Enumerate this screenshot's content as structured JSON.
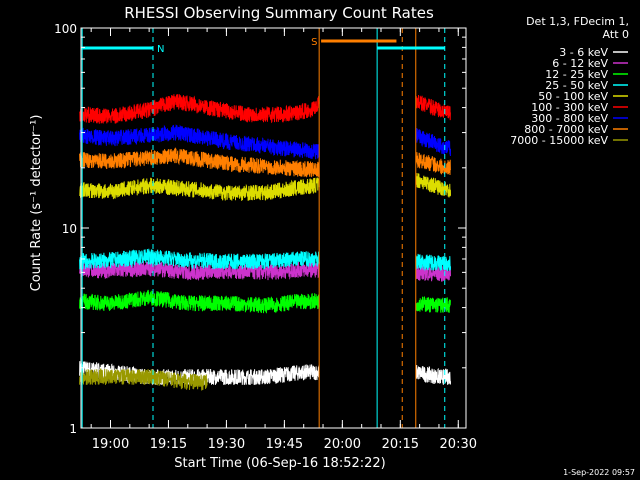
{
  "header": {
    "title": "RHESSI Observing Summary Count Rates",
    "info_line1": "Det 1,3, FDecim 1,",
    "info_line2": "Att 0",
    "footer_date": "1-Sep-2022 09:57"
  },
  "chart_data": {
    "type": "line",
    "title": "RHESSI Observing Summary Count Rates",
    "xlabel": "Start Time (06-Sep-16 18:52:22)",
    "ylabel": "Count Rate (s⁻¹ detector⁻¹)",
    "y_scale": "log",
    "ylim": [
      1,
      100
    ],
    "x_start": "18:52:22",
    "x_end": "20:32:00",
    "x_ticks": [
      "19:00",
      "19:15",
      "19:30",
      "19:45",
      "20:00",
      "20:15",
      "20:30"
    ],
    "y_ticks": [
      "1",
      "10",
      "100"
    ],
    "grid": false,
    "legend_position": "top-right",
    "data_gaps": [
      [
        "19:54:00",
        "20:19:00"
      ]
    ],
    "series": [
      {
        "name": "3 - 6 keV",
        "color": "#ffffff",
        "points": [
          [
            "18:52",
            "2"
          ],
          [
            "19:00",
            "1.9"
          ],
          [
            "19:10",
            "1.8"
          ],
          [
            "19:20",
            "1.8"
          ],
          [
            "19:30",
            "1.8"
          ],
          [
            "19:40",
            "1.8"
          ],
          [
            "19:50",
            "1.9"
          ],
          [
            "19:54",
            "1.9"
          ],
          [
            "20:19",
            "1.9"
          ],
          [
            "20:25",
            "1.8"
          ],
          [
            "20:28",
            "1.8"
          ]
        ]
      },
      {
        "name": "6 - 12 keV",
        "color": "#cc33cc",
        "points": [
          [
            "18:52",
            "6.2"
          ],
          [
            "19:00",
            "6.1"
          ],
          [
            "19:10",
            "6.3"
          ],
          [
            "19:20",
            "6.0"
          ],
          [
            "19:30",
            "6.1"
          ],
          [
            "19:40",
            "6.0"
          ],
          [
            "19:50",
            "6.2"
          ],
          [
            "19:54",
            "6.2"
          ],
          [
            "20:19",
            "6.0"
          ],
          [
            "20:25",
            "5.9"
          ],
          [
            "20:28",
            "5.9"
          ]
        ]
      },
      {
        "name": "12 - 25 keV",
        "color": "#00ff00",
        "points": [
          [
            "18:52",
            "4.3"
          ],
          [
            "19:00",
            "4.2"
          ],
          [
            "19:10",
            "4.5"
          ],
          [
            "19:20",
            "4.2"
          ],
          [
            "19:30",
            "4.2"
          ],
          [
            "19:40",
            "4.1"
          ],
          [
            "19:50",
            "4.3"
          ],
          [
            "19:54",
            "4.3"
          ],
          [
            "20:19",
            "4.2"
          ],
          [
            "20:25",
            "4.1"
          ],
          [
            "20:28",
            "4.1"
          ]
        ]
      },
      {
        "name": "25 - 50 keV",
        "color": "#00ffff",
        "points": [
          [
            "18:52",
            "6.8"
          ],
          [
            "19:00",
            "6.9"
          ],
          [
            "19:10",
            "7.2"
          ],
          [
            "19:20",
            "6.9"
          ],
          [
            "19:30",
            "6.8"
          ],
          [
            "19:40",
            "6.8"
          ],
          [
            "19:50",
            "7.0"
          ],
          [
            "19:54",
            "7.0"
          ],
          [
            "20:19",
            "6.8"
          ],
          [
            "20:25",
            "6.7"
          ],
          [
            "20:28",
            "6.6"
          ]
        ]
      },
      {
        "name": "50 - 100 keV",
        "color": "#dddd00",
        "points": [
          [
            "18:52",
            "15.5"
          ],
          [
            "19:00",
            "15.2"
          ],
          [
            "19:10",
            "16.3"
          ],
          [
            "19:20",
            "15.7"
          ],
          [
            "19:30",
            "15.0"
          ],
          [
            "19:40",
            "15.0"
          ],
          [
            "19:50",
            "16.0"
          ],
          [
            "19:54",
            "16.5"
          ],
          [
            "20:19",
            "17.5"
          ],
          [
            "20:25",
            "16.0"
          ],
          [
            "20:28",
            "15.5"
          ]
        ]
      },
      {
        "name": "100 - 300 keV",
        "color": "#ff0000",
        "points": [
          [
            "18:52",
            "37"
          ],
          [
            "19:00",
            "36"
          ],
          [
            "19:10",
            "39"
          ],
          [
            "19:17",
            "43"
          ],
          [
            "19:25",
            "40"
          ],
          [
            "19:35",
            "37"
          ],
          [
            "19:45",
            "37"
          ],
          [
            "19:52",
            "39"
          ],
          [
            "19:54",
            "42"
          ],
          [
            "20:19",
            "43"
          ],
          [
            "20:25",
            "39"
          ],
          [
            "20:28",
            "37"
          ]
        ]
      },
      {
        "name": "300 - 800 keV",
        "color": "#0000ff",
        "points": [
          [
            "18:52",
            "29"
          ],
          [
            "19:00",
            "28"
          ],
          [
            "19:10",
            "29"
          ],
          [
            "19:17",
            "30"
          ],
          [
            "19:30",
            "27"
          ],
          [
            "19:45",
            "25"
          ],
          [
            "19:54",
            "24"
          ],
          [
            "20:19",
            "29"
          ],
          [
            "20:25",
            "26"
          ],
          [
            "20:28",
            "25"
          ]
        ]
      },
      {
        "name": "800 - 7000 keV",
        "color": "#ff7f00",
        "points": [
          [
            "18:52",
            "22"
          ],
          [
            "19:00",
            "21.5"
          ],
          [
            "19:10",
            "22.5"
          ],
          [
            "19:17",
            "23"
          ],
          [
            "19:30",
            "21"
          ],
          [
            "19:45",
            "20"
          ],
          [
            "19:54",
            "19.5"
          ],
          [
            "20:19",
            "22"
          ],
          [
            "20:25",
            "20.5"
          ],
          [
            "20:28",
            "20"
          ]
        ]
      },
      {
        "name": "7000 - 15000 keV",
        "color": "#999900",
        "points": [
          [
            "18:52",
            "1.8"
          ],
          [
            "19:10",
            "1.8"
          ],
          [
            "19:20",
            "1.7"
          ],
          [
            "19:25",
            "1.7"
          ]
        ]
      }
    ],
    "flags": [
      {
        "label": "N",
        "color": "#00ffff",
        "start": "18:52:30",
        "end": "19:11:00"
      },
      {
        "label": "S",
        "color": "#ff7f00",
        "start": "19:54:30",
        "end": "20:14:00"
      },
      {
        "label": "",
        "color": "#00ffff",
        "start": "20:09:00",
        "end": "20:26:30"
      }
    ],
    "events": [
      {
        "time": "18:52:40",
        "color": "#00ffff",
        "style": "solid"
      },
      {
        "time": "19:11:00",
        "color": "#00ffff",
        "style": "dashed"
      },
      {
        "time": "19:54:00",
        "color": "#ff7f00",
        "style": "solid"
      },
      {
        "time": "20:09:00",
        "color": "#00ffff",
        "style": "solid"
      },
      {
        "time": "20:15:30",
        "color": "#ff7f00",
        "style": "dashed"
      },
      {
        "time": "20:19:00",
        "color": "#ff7f00",
        "style": "solid"
      },
      {
        "time": "20:26:30",
        "color": "#00ffff",
        "style": "dashed"
      }
    ]
  }
}
